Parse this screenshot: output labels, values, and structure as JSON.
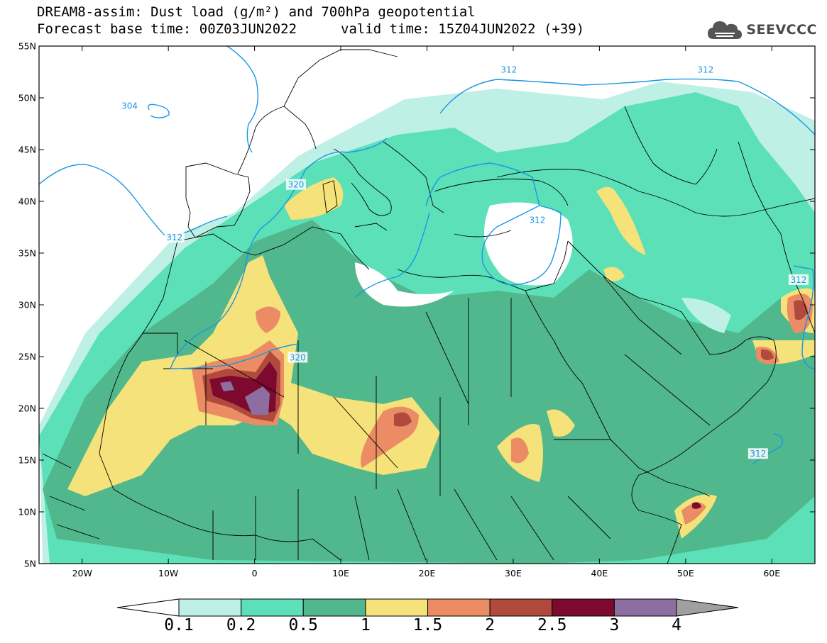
{
  "title": {
    "line1": "DREAM8-assim: Dust load (g/m²) and 700hPa geopotential",
    "base_time": "Forecast base time: 00Z03JUN2022",
    "valid_time": "valid time: 15Z04JUN2022 (+39)"
  },
  "logo": {
    "text": "SEEVCCC",
    "icon": "cloud-logo-icon"
  },
  "map": {
    "lon_range": [
      -25,
      65
    ],
    "lat_range": [
      5,
      55
    ],
    "lon_ticks": [
      {
        "value": -20,
        "label": "20W"
      },
      {
        "value": -10,
        "label": "10W"
      },
      {
        "value": 0,
        "label": "0"
      },
      {
        "value": 10,
        "label": "10E"
      },
      {
        "value": 20,
        "label": "20E"
      },
      {
        "value": 30,
        "label": "30E"
      },
      {
        "value": 40,
        "label": "40E"
      },
      {
        "value": 50,
        "label": "50E"
      },
      {
        "value": 60,
        "label": "60E"
      }
    ],
    "lat_ticks": [
      {
        "value": 55,
        "label": "55N"
      },
      {
        "value": 50,
        "label": "50N"
      },
      {
        "value": 45,
        "label": "45N"
      },
      {
        "value": 40,
        "label": "40N"
      },
      {
        "value": 35,
        "label": "35N"
      },
      {
        "value": 30,
        "label": "30N"
      },
      {
        "value": 25,
        "label": "25N"
      },
      {
        "value": 20,
        "label": "20N"
      },
      {
        "value": 15,
        "label": "15N"
      },
      {
        "value": 10,
        "label": "10N"
      },
      {
        "value": 5,
        "label": "5N"
      }
    ],
    "contour_labels": [
      {
        "text": "304",
        "lon": -14.5,
        "lat": 49.2
      },
      {
        "text": "312",
        "lon": -9.3,
        "lat": 36.5
      },
      {
        "text": "320",
        "lon": 4.8,
        "lat": 41.6
      },
      {
        "text": "312",
        "lon": 32.8,
        "lat": 38.2
      },
      {
        "text": "312",
        "lon": 29.5,
        "lat": 52.7
      },
      {
        "text": "312",
        "lon": 52.3,
        "lat": 52.7
      },
      {
        "text": "320",
        "lon": 5.0,
        "lat": 24.9
      },
      {
        "text": "312",
        "lon": 63.1,
        "lat": 32.4
      },
      {
        "text": "312",
        "lon": 58.4,
        "lat": 15.6
      }
    ]
  },
  "legend": {
    "colors": [
      "#bff0e6",
      "#5ce0b8",
      "#50b88c",
      "#f5e27a",
      "#eb8c64",
      "#b04a3c",
      "#7d0a2e",
      "#8c6ea0"
    ],
    "under_color": "#ffffff",
    "over_color": "#a0a0a0",
    "labels": [
      "0.1",
      "0.2",
      "0.5",
      "1",
      "1.5",
      "2",
      "2.5",
      "3",
      "4"
    ]
  }
}
